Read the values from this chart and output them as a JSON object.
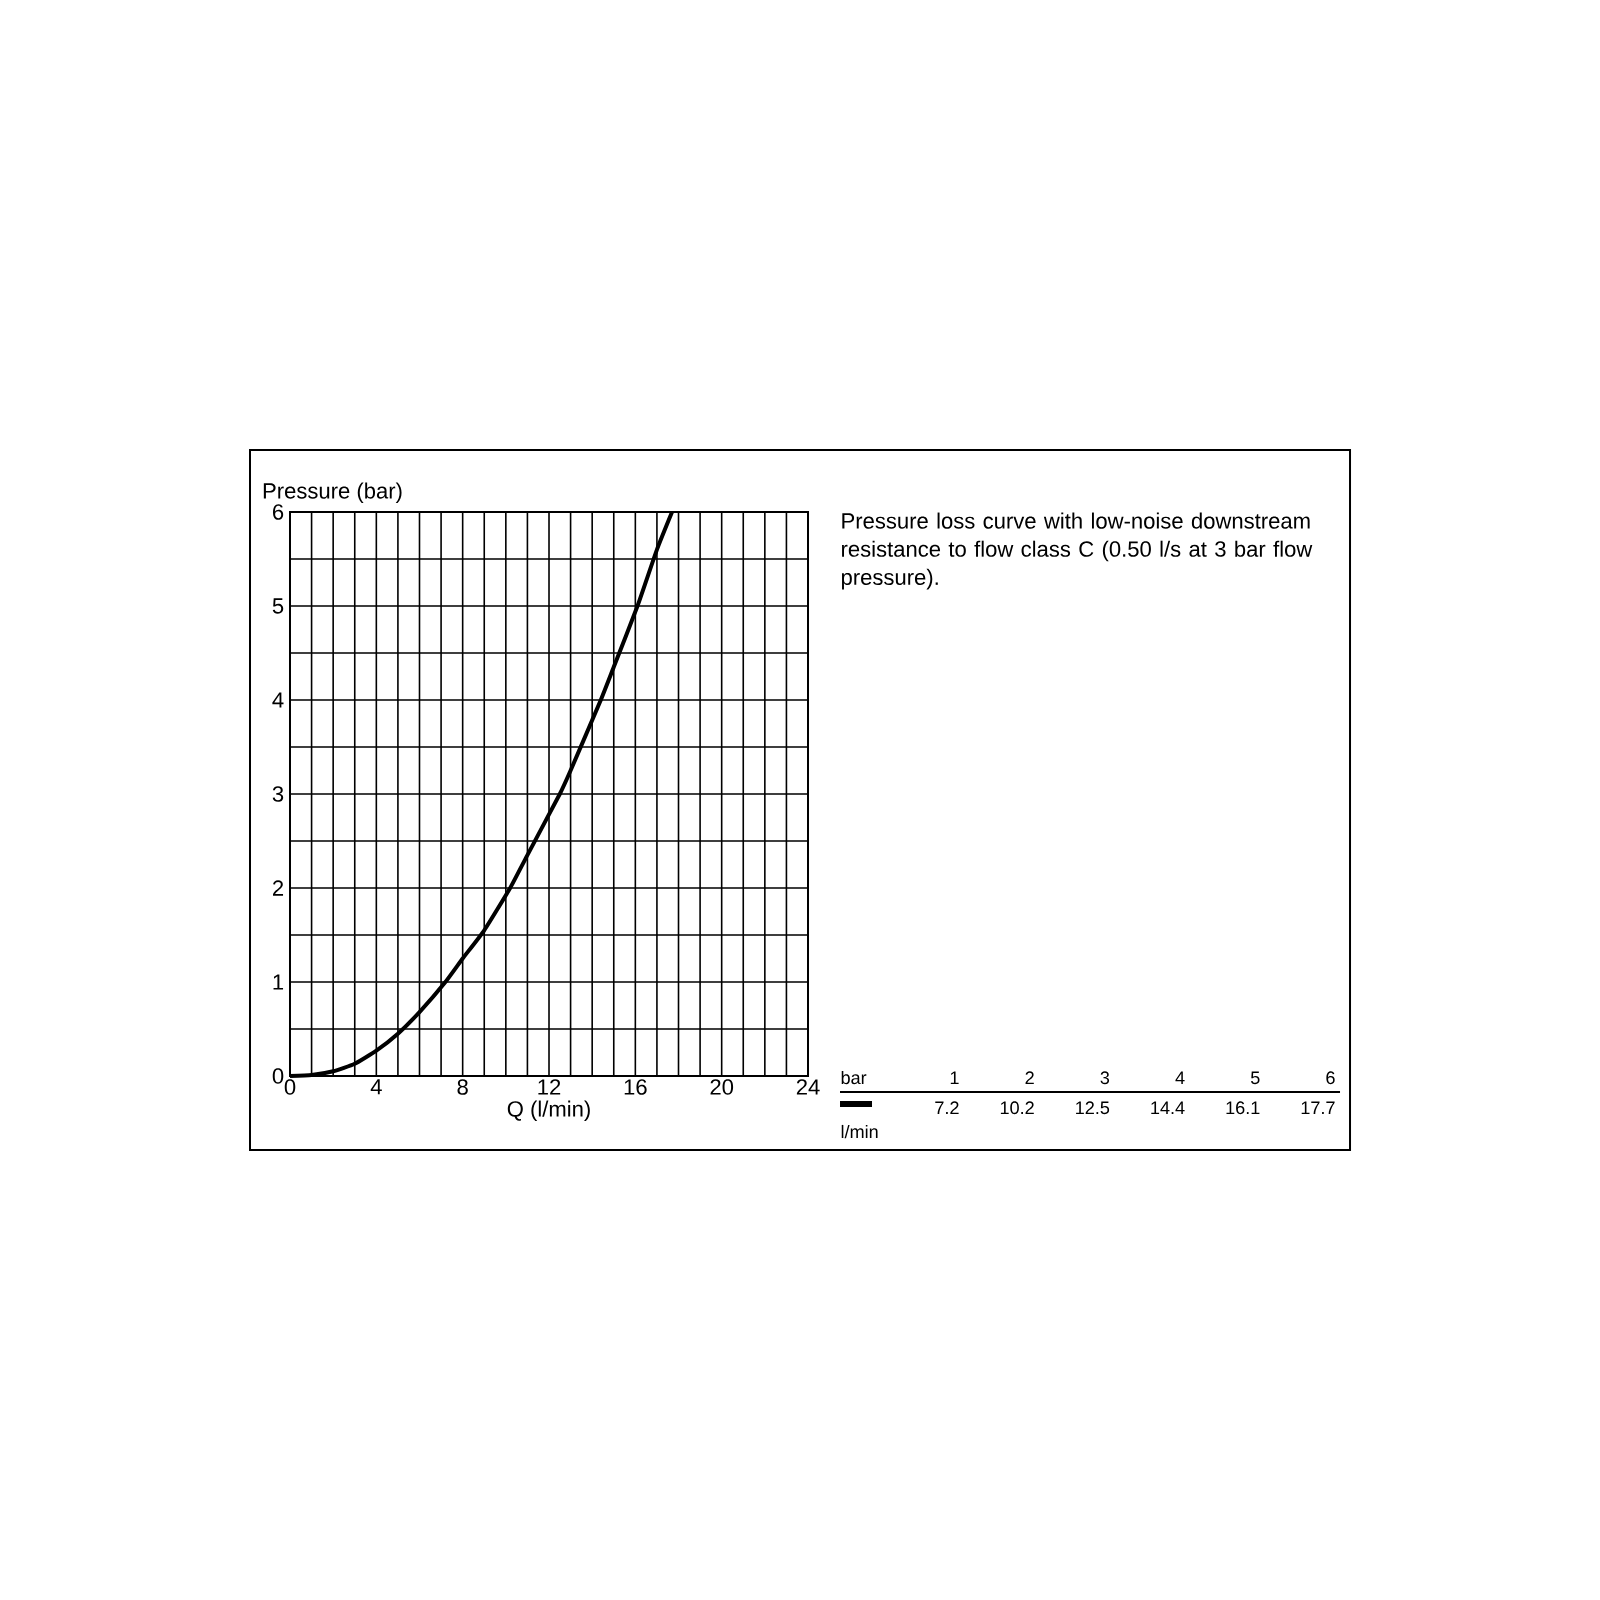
{
  "chart_data": {
    "type": "line",
    "xlabel": "Q (l/min)",
    "ylabel": "Pressure (bar)",
    "x": [
      0,
      1,
      2,
      3,
      4,
      5,
      6,
      7.2,
      8,
      9,
      10.2,
      11,
      12.5,
      13,
      14.4,
      15,
      16.1,
      17,
      17.7
    ],
    "series": [
      {
        "color": "#000000",
        "values": [
          0,
          0.01,
          0.05,
          0.13,
          0.27,
          0.45,
          0.68,
          1,
          1.25,
          1.55,
          2,
          2.35,
          3,
          3.25,
          4,
          4.35,
          5,
          5.6,
          6
        ]
      }
    ],
    "xlim": [
      0,
      24
    ],
    "ylim": [
      0,
      6
    ],
    "xticks": [
      0,
      4,
      8,
      12,
      16,
      20,
      24
    ],
    "yticks": [
      0,
      1,
      2,
      3,
      4,
      5,
      6
    ],
    "grid": true,
    "marker": "none",
    "line_style": "solid",
    "annotations": [
      "Pressure loss curve with low-noise downstream resistance to flow class C (0.50 l/s at 3 bar flow pressure).",
      "bar",
      "l/min",
      "1",
      "2",
      "3",
      "4",
      "5",
      "6",
      "7.2",
      "10.2",
      "12.5",
      "14.4",
      "16.1",
      "17.7"
    ]
  }
}
